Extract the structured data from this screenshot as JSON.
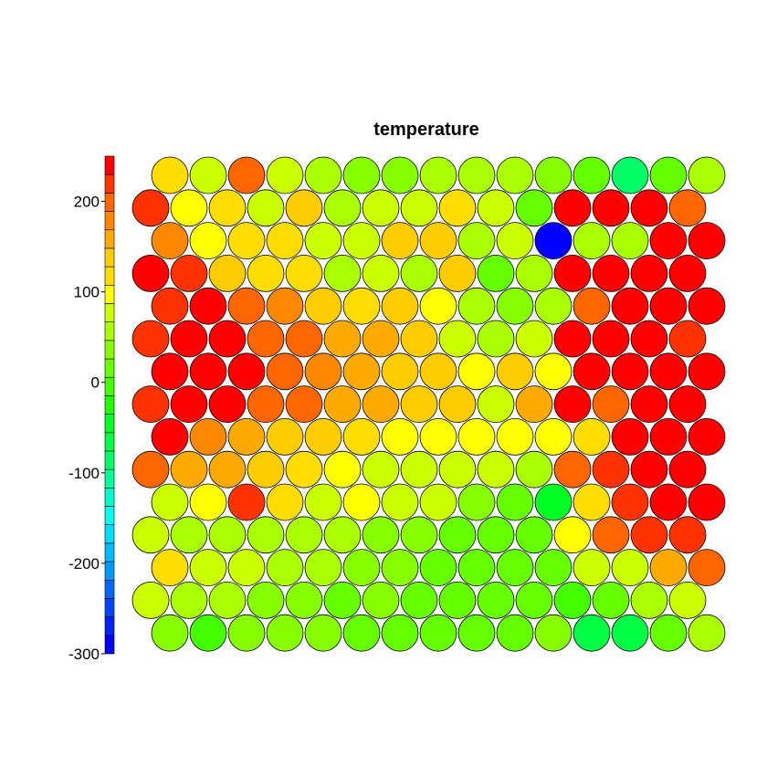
{
  "chart_data": {
    "type": "heatmap",
    "layout": "hexagonal-grid",
    "title": "temperature",
    "rows": 15,
    "cols": 15,
    "colorbar": {
      "range": [
        -300,
        250
      ],
      "ticks": [
        -300,
        -200,
        -100,
        0,
        100,
        200
      ],
      "tick_labels": [
        "-300",
        "-200",
        "-100",
        "0",
        "100",
        "200"
      ],
      "color_bins": [
        "#0000ff",
        "#0022ff",
        "#0044ff",
        "#0066ff",
        "#0099ff",
        "#00bbff",
        "#00ddff",
        "#00ffee",
        "#00ffcc",
        "#00ff99",
        "#00ff66",
        "#00ff44",
        "#00ff22",
        "#22ff00",
        "#44ff00",
        "#66ff00",
        "#88ff00",
        "#aaff00",
        "#ccff00",
        "#ffff00",
        "#ffdd00",
        "#ffcc00",
        "#ffaa00",
        "#ff8800",
        "#ff6600",
        "#ff3300",
        "#ff0000"
      ]
    },
    "values": [
      [
        115,
        80,
        200,
        80,
        60,
        40,
        30,
        50,
        50,
        60,
        30,
        20,
        -80,
        20,
        50
      ],
      [
        215,
        105,
        110,
        80,
        130,
        60,
        80,
        85,
        110,
        80,
        15,
        250,
        250,
        250,
        190
      ],
      [
        185,
        105,
        125,
        115,
        80,
        75,
        130,
        130,
        60,
        80,
        -300,
        50,
        60,
        250,
        250
      ],
      [
        250,
        220,
        130,
        115,
        110,
        55,
        75,
        60,
        130,
        20,
        50,
        250,
        230,
        250,
        250
      ],
      [
        215,
        250,
        200,
        170,
        140,
        115,
        130,
        90,
        55,
        40,
        50,
        200,
        250,
        250,
        250
      ],
      [
        220,
        250,
        230,
        200,
        190,
        160,
        160,
        135,
        80,
        60,
        80,
        230,
        250,
        240,
        220
      ],
      [
        230,
        250,
        250,
        200,
        185,
        160,
        135,
        130,
        105,
        130,
        105,
        250,
        250,
        250,
        250
      ],
      [
        220,
        250,
        230,
        200,
        190,
        160,
        160,
        130,
        135,
        75,
        165,
        250,
        200,
        230,
        250
      ],
      [
        250,
        170,
        160,
        140,
        135,
        110,
        105,
        100,
        100,
        100,
        105,
        110,
        250,
        250,
        250
      ],
      [
        200,
        165,
        160,
        130,
        110,
        105,
        80,
        80,
        75,
        80,
        50,
        200,
        220,
        230,
        250
      ],
      [
        80,
        105,
        210,
        110,
        80,
        100,
        80,
        70,
        30,
        20,
        -50,
        110,
        210,
        250,
        250
      ],
      [
        70,
        60,
        60,
        50,
        60,
        60,
        45,
        30,
        25,
        20,
        10,
        100,
        200,
        220,
        210
      ],
      [
        110,
        80,
        70,
        60,
        50,
        40,
        30,
        25,
        20,
        20,
        15,
        75,
        70,
        160,
        200
      ],
      [
        70,
        60,
        55,
        40,
        30,
        25,
        35,
        20,
        15,
        20,
        10,
        0,
        20,
        50,
        85
      ],
      [
        30,
        -10,
        30,
        35,
        35,
        20,
        15,
        20,
        20,
        25,
        30,
        -70,
        -60,
        25,
        65
      ]
    ]
  }
}
